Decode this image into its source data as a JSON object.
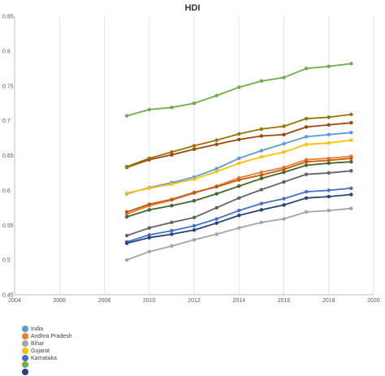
{
  "chart_data": {
    "type": "line",
    "title": "HDI",
    "xlabel": "",
    "ylabel": "",
    "xlim": [
      2004,
      2020
    ],
    "ylim": [
      0.45,
      0.85
    ],
    "x_ticks": [
      "2004",
      "2006",
      "2008",
      "2010",
      "2012",
      "2014",
      "2016",
      "2018",
      "2020"
    ],
    "y_ticks": [
      "0.45",
      "0.5",
      "0.55",
      "0.6",
      "0.65",
      "0.7",
      "0.75",
      "0.8",
      "0.85"
    ],
    "grid": "vertical",
    "legend_position": "bottom-left",
    "x": [
      2009,
      2010,
      2011,
      2012,
      2013,
      2014,
      2015,
      2016,
      2017,
      2018,
      2019
    ],
    "series": [
      {
        "name": "India",
        "color": "#5b9bd5",
        "values": [
          0.595,
          0.604,
          0.611,
          0.619,
          0.631,
          0.646,
          0.657,
          0.667,
          0.677,
          0.68,
          0.683
        ]
      },
      {
        "name": "Andhra Pradesh",
        "color": "#ed7d31",
        "values": [
          0.566,
          0.578,
          0.586,
          0.596,
          0.606,
          0.618,
          0.626,
          0.633,
          0.644,
          0.646,
          0.649
        ]
      },
      {
        "name": "Bihar",
        "color": "#a5a5a5",
        "values": [
          0.5,
          0.512,
          0.52,
          0.529,
          0.537,
          0.546,
          0.554,
          0.559,
          0.569,
          0.571,
          0.574
        ]
      },
      {
        "name": "Gujarat",
        "color": "#ffc000",
        "values": [
          0.596,
          0.603,
          0.609,
          0.616,
          0.627,
          0.639,
          0.648,
          0.655,
          0.666,
          0.668,
          0.672
        ]
      },
      {
        "name": "Karnataka",
        "color": "#4472c4",
        "values": [
          0.526,
          0.536,
          0.542,
          0.549,
          0.559,
          0.571,
          0.581,
          0.588,
          0.598,
          0.6,
          0.603
        ]
      },
      {
        "name": "",
        "color": "#70ad47",
        "values": [
          0.707,
          0.716,
          0.719,
          0.725,
          0.736,
          0.748,
          0.757,
          0.762,
          0.775,
          0.778,
          0.782
        ]
      },
      {
        "name": "",
        "color": "#264478",
        "values": [
          0.524,
          0.532,
          0.537,
          0.543,
          0.553,
          0.564,
          0.572,
          0.579,
          0.589,
          0.591,
          0.594
        ]
      },
      {
        "name": "",
        "color": "#9e480e",
        "values": [
          0.633,
          0.644,
          0.651,
          0.659,
          0.666,
          0.673,
          0.678,
          0.68,
          0.691,
          0.694,
          0.697
        ]
      },
      {
        "name": "",
        "color": "#636363",
        "values": [
          0.535,
          0.546,
          0.554,
          0.561,
          0.575,
          0.589,
          0.601,
          0.612,
          0.623,
          0.625,
          0.628
        ]
      },
      {
        "name": "",
        "color": "#997300",
        "values": [
          0.634,
          0.646,
          0.655,
          0.664,
          0.672,
          0.681,
          0.688,
          0.692,
          0.703,
          0.705,
          0.709
        ]
      },
      {
        "name": "",
        "color": "#43682b",
        "values": [
          0.562,
          0.572,
          0.578,
          0.585,
          0.595,
          0.606,
          0.617,
          0.626,
          0.636,
          0.639,
          0.641
        ]
      },
      {
        "name": "",
        "color": "#c55a11",
        "values": [
          0.569,
          0.58,
          0.587,
          0.597,
          0.605,
          0.615,
          0.622,
          0.63,
          0.641,
          0.643,
          0.646
        ]
      }
    ]
  },
  "legend": {
    "items": [
      {
        "name": "India",
        "color": "#5b9bd5"
      },
      {
        "name": "Andhra Pradesh",
        "color": "#ed7d31"
      },
      {
        "name": "Bihar",
        "color": "#a5a5a5"
      },
      {
        "name": "Gujarat",
        "color": "#ffc000"
      },
      {
        "name": "Karnataka",
        "color": "#4472c4"
      },
      {
        "name": "",
        "color": "#70ad47"
      },
      {
        "name": "",
        "color": "#264478"
      }
    ]
  }
}
